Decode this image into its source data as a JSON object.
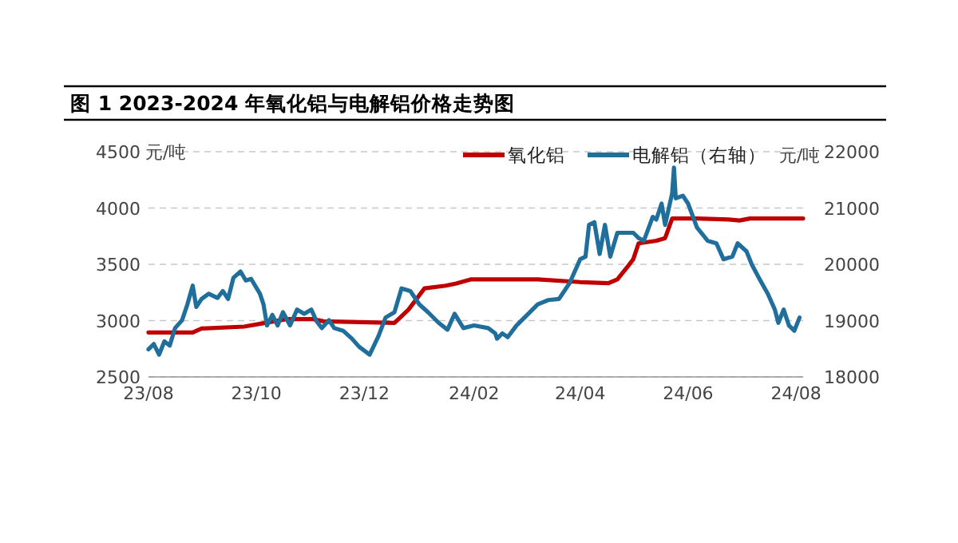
{
  "chart_data": {
    "type": "line",
    "title": "图 1 2023-2024 年氧化铝与电解铝价格走势图",
    "ylabel": "元/吨",
    "y2label": "元/吨",
    "xlim": [
      "2023-08-01",
      "2024-08-05"
    ],
    "xticks": [
      {
        "value": "2023-08-01",
        "label": "23/08"
      },
      {
        "value": "2023-10-01",
        "label": "23/10"
      },
      {
        "value": "2023-12-01",
        "label": "23/12"
      },
      {
        "value": "2024-02-01",
        "label": "24/02"
      },
      {
        "value": "2024-04-01",
        "label": "24/04"
      },
      {
        "value": "2024-06-01",
        "label": "24/06"
      },
      {
        "value": "2024-08-01",
        "label": "24/08"
      }
    ],
    "ylim": [
      2500,
      4500
    ],
    "yticks": [
      2500,
      3000,
      3500,
      4000,
      4500
    ],
    "y2lim": [
      18000,
      22000
    ],
    "y2ticks": [
      18000,
      19000,
      20000,
      21000,
      22000
    ],
    "grid": "y",
    "legend": "top",
    "line_style": "solid",
    "series": [
      {
        "name": "氧化铝",
        "color": "#c00000",
        "x": [
          "2023-08-01",
          "2023-08-26",
          "2023-08-31",
          "2023-09-24",
          "2023-10-06",
          "2023-10-18",
          "2023-11-02",
          "2023-11-08",
          "2023-12-18",
          "2023-12-26",
          "2024-01-04",
          "2024-01-16",
          "2024-01-22",
          "2024-01-30",
          "2024-03-08",
          "2024-04-01",
          "2024-04-17",
          "2024-04-22",
          "2024-04-28",
          "2024-05-01",
          "2024-05-04",
          "2024-05-14",
          "2024-05-19",
          "2024-05-23",
          "2024-06-06",
          "2024-06-24",
          "2024-06-30",
          "2024-07-06",
          "2024-08-05"
        ],
        "values": [
          2895,
          2895,
          2930,
          2947,
          2980,
          3013,
          3013,
          2994,
          2980,
          3098,
          3286,
          3310,
          3330,
          3366,
          3366,
          3342,
          3333,
          3366,
          3484,
          3545,
          3686,
          3709,
          3733,
          3907,
          3907,
          3898,
          3889,
          3907,
          3907
        ]
      },
      {
        "name": "电解铝（右轴）",
        "color": "#1f6e9c",
        "axis": "y2",
        "x": [
          "2023-08-01",
          "2023-08-04",
          "2023-08-07",
          "2023-08-10",
          "2023-08-13",
          "2023-08-16",
          "2023-08-20",
          "2023-08-23",
          "2023-08-26",
          "2023-08-28",
          "2023-08-31",
          "2023-09-04",
          "2023-09-09",
          "2023-09-12",
          "2023-09-15",
          "2023-09-18",
          "2023-09-22",
          "2023-09-25",
          "2023-09-28",
          "2023-10-03",
          "2023-10-05",
          "2023-10-07",
          "2023-10-10",
          "2023-10-13",
          "2023-10-16",
          "2023-10-20",
          "2023-10-24",
          "2023-10-28",
          "2023-11-01",
          "2023-11-04",
          "2023-11-07",
          "2023-11-11",
          "2023-11-14",
          "2023-11-19",
          "2023-11-24",
          "2023-11-28",
          "2023-12-04",
          "2023-12-09",
          "2023-12-13",
          "2023-12-18",
          "2023-12-22",
          "2023-12-27",
          "2024-01-01",
          "2024-01-06",
          "2024-01-12",
          "2024-01-17",
          "2024-01-21",
          "2024-01-26",
          "2024-02-01",
          "2024-02-09",
          "2024-02-13",
          "2024-02-14",
          "2024-02-17",
          "2024-02-20",
          "2024-02-25",
          "2024-03-02",
          "2024-03-08",
          "2024-03-14",
          "2024-03-20",
          "2024-03-23",
          "2024-03-26",
          "2024-04-01",
          "2024-04-04",
          "2024-04-06",
          "2024-04-09",
          "2024-04-12",
          "2024-04-15",
          "2024-04-18",
          "2024-04-22",
          "2024-05-01",
          "2024-05-04",
          "2024-05-07",
          "2024-05-12",
          "2024-05-14",
          "2024-05-17",
          "2024-05-19",
          "2024-05-23",
          "2024-05-24",
          "2024-05-25",
          "2024-05-29",
          "2024-06-01",
          "2024-06-06",
          "2024-06-12",
          "2024-06-17",
          "2024-06-21",
          "2024-06-26",
          "2024-06-29",
          "2024-07-04",
          "2024-07-07",
          "2024-07-11",
          "2024-07-16",
          "2024-07-20",
          "2024-07-22",
          "2024-07-25",
          "2024-07-28",
          "2024-07-31",
          "2024-08-03"
        ],
        "values": [
          18490,
          18584,
          18396,
          18631,
          18556,
          18867,
          19008,
          19290,
          19620,
          19243,
          19384,
          19478,
          19403,
          19525,
          19384,
          19760,
          19873,
          19713,
          19741,
          19478,
          19290,
          18914,
          19102,
          18914,
          19149,
          18914,
          19196,
          19121,
          19196,
          18989,
          18867,
          19008,
          18867,
          18820,
          18679,
          18537,
          18396,
          18726,
          19055,
          19149,
          19572,
          19525,
          19290,
          19149,
          18961,
          18839,
          19121,
          18867,
          18914,
          18867,
          18773,
          18679,
          18773,
          18706,
          18914,
          19102,
          19290,
          19365,
          19384,
          19525,
          19666,
          20090,
          20137,
          20701,
          20748,
          20184,
          20701,
          20137,
          20560,
          20560,
          20466,
          20419,
          20843,
          20795,
          21078,
          20701,
          21266,
          21718,
          21172,
          21219,
          21078,
          20654,
          20419,
          20372,
          20090,
          20137,
          20372,
          20231,
          19996,
          19760,
          19478,
          19196,
          18961,
          19196,
          18914,
          18820,
          19055
        ]
      }
    ]
  }
}
